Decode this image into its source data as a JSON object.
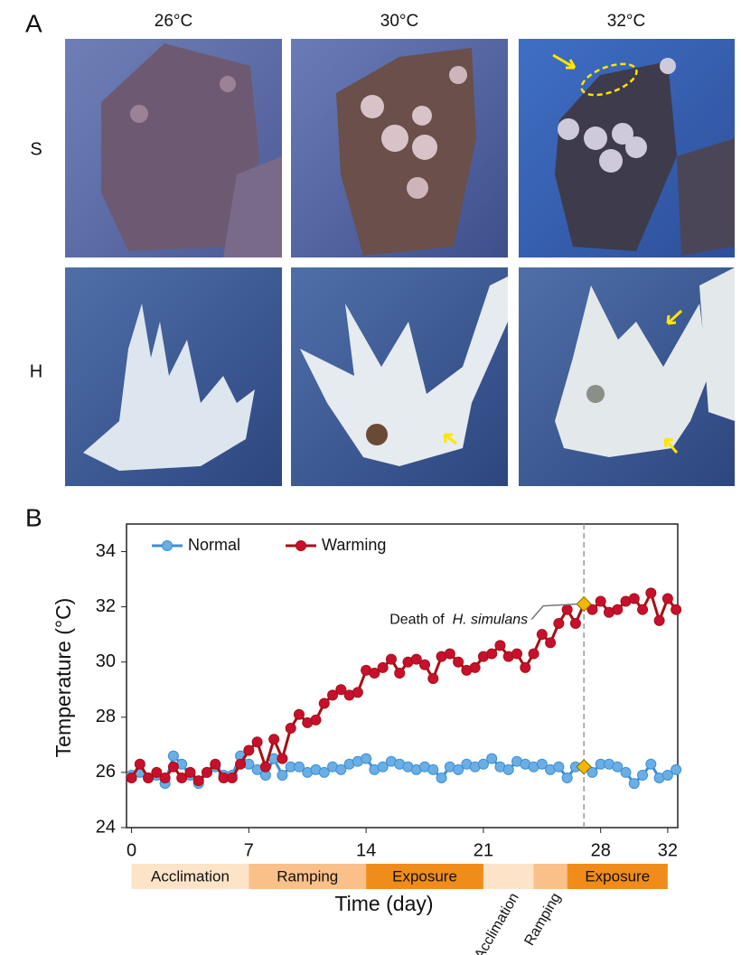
{
  "panel_a": {
    "label": "A",
    "column_labels": [
      "26°C",
      "30°C",
      "32°C"
    ],
    "row_labels": [
      "S",
      "H"
    ]
  },
  "chart_data": {
    "panel_label": "B",
    "type": "line",
    "xlabel": "Time (day)",
    "ylabel": "Temperature (°C)",
    "x": [
      0,
      0.5,
      1,
      1.5,
      2,
      2.5,
      3,
      3.5,
      4,
      4.5,
      5,
      5.5,
      6,
      6.5,
      7,
      7.5,
      8,
      8.5,
      9,
      9.5,
      10,
      10.5,
      11,
      11.5,
      12,
      12.5,
      13,
      13.5,
      14,
      14.5,
      15,
      15.5,
      16,
      16.5,
      17,
      17.5,
      18,
      18.5,
      19,
      19.5,
      20,
      20.5,
      21,
      21.5,
      22,
      22.5,
      23,
      23.5,
      24,
      24.5,
      25,
      25.5,
      26,
      26.5,
      27,
      27.5,
      28,
      28.5,
      29,
      29.5,
      30,
      30.5,
      31,
      31.5,
      32,
      32.5
    ],
    "series": [
      {
        "name": "Normal",
        "color": "#3d8fd1",
        "marker_color": "#6aaee6",
        "values": [
          25.9,
          26.0,
          25.8,
          25.9,
          25.6,
          26.6,
          26.3,
          25.9,
          25.6,
          26.0,
          26.2,
          25.9,
          25.9,
          26.6,
          26.3,
          26.1,
          25.9,
          26.5,
          25.9,
          26.2,
          26.2,
          26.0,
          26.1,
          26.0,
          26.2,
          26.1,
          26.3,
          26.4,
          26.5,
          26.1,
          26.2,
          26.4,
          26.3,
          26.2,
          26.1,
          26.2,
          26.1,
          25.8,
          26.2,
          26.1,
          26.3,
          26.2,
          26.3,
          26.5,
          26.2,
          26.1,
          26.4,
          26.3,
          26.2,
          26.3,
          26.1,
          26.2,
          25.8,
          26.2,
          26.2,
          26.0,
          26.3,
          26.3,
          26.2,
          26.0,
          25.6,
          25.9,
          26.3,
          25.8,
          25.9,
          26.1
        ]
      },
      {
        "name": "Warming",
        "color": "#a50f15",
        "marker_color": "#c8102e",
        "values": [
          25.8,
          26.3,
          25.8,
          26.0,
          25.8,
          26.2,
          25.8,
          26.0,
          25.7,
          26.0,
          26.3,
          25.8,
          25.8,
          26.3,
          26.8,
          27.1,
          26.2,
          27.2,
          26.5,
          27.6,
          28.1,
          27.8,
          27.9,
          28.5,
          28.8,
          29.0,
          28.8,
          28.9,
          29.7,
          29.6,
          29.8,
          30.1,
          29.6,
          30.0,
          30.1,
          29.9,
          29.4,
          30.2,
          30.3,
          30.0,
          29.7,
          29.8,
          30.2,
          30.3,
          30.6,
          30.2,
          30.3,
          29.8,
          30.3,
          31.0,
          30.7,
          31.4,
          31.9,
          31.4,
          32.1,
          31.9,
          32.2,
          31.8,
          31.9,
          32.2,
          32.3,
          31.9,
          32.5,
          31.5,
          32.3,
          31.9
        ]
      }
    ],
    "xlim": [
      -0.3,
      32.6
    ],
    "ylim": [
      24,
      35
    ],
    "xticks": [
      0,
      7,
      14,
      21,
      28,
      32
    ],
    "yticks": [
      24,
      26,
      28,
      30,
      32,
      34
    ],
    "legend": "top-left",
    "vline_x": 27,
    "highlight_color": "#f2b705",
    "highlight_points": [
      {
        "x": 27,
        "y": 32.1
      },
      {
        "x": 27,
        "y": 26.2
      }
    ],
    "annotation": {
      "text": "Death of",
      "italic": "H. simulans"
    },
    "phases": [
      {
        "label": "Acclimation",
        "start": 0,
        "end": 7,
        "color": "#fde3c8"
      },
      {
        "label": "Ramping",
        "start": 7,
        "end": 14,
        "color": "#f9c08a"
      },
      {
        "label": "Exposure",
        "start": 14,
        "end": 21,
        "color": "#f08c1a"
      },
      {
        "label": "Acclimation",
        "start": 21,
        "end": 24,
        "color": "#fde3c8"
      },
      {
        "label": "Ramping",
        "start": 24,
        "end": 26,
        "color": "#f9c08a"
      },
      {
        "label": "Exposure",
        "start": 26,
        "end": 32,
        "color": "#f08c1a"
      }
    ]
  }
}
